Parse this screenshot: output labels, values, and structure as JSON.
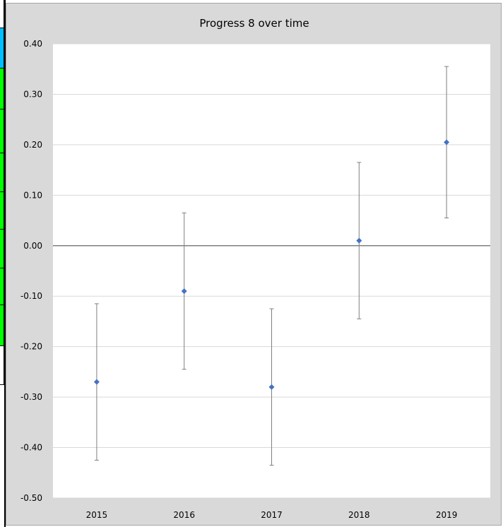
{
  "chart_data": {
    "type": "scatter",
    "title": "Progress 8 over time",
    "xlabel": "",
    "ylabel": "",
    "categories": [
      "2015",
      "2016",
      "2017",
      "2018",
      "2019"
    ],
    "series": [
      {
        "values": [
          -0.27,
          -0.09,
          -0.28,
          0.01,
          0.205
        ],
        "error_low": [
          -0.425,
          -0.245,
          -0.435,
          -0.145,
          0.055
        ],
        "error_high": [
          -0.115,
          0.065,
          -0.125,
          0.165,
          0.355
        ],
        "color": "#4472c4"
      }
    ],
    "ylim": [
      -0.5,
      0.4
    ],
    "yticks": [
      "-0.50",
      "-0.40",
      "-0.30",
      "-0.20",
      "-0.10",
      "0.00",
      "0.10",
      "0.20",
      "0.30",
      "0.40"
    ],
    "grid": true,
    "legend": "none"
  },
  "colors": {
    "plot_background": "#ffffff",
    "chart_background": "#d9d9d9",
    "gridline": "#d9d9d9",
    "zero_line": "#808080",
    "error_bar": "#7f7f7f",
    "marker": "#4472c4"
  },
  "edge_strip": [
    "#ffffff",
    "#00bfff",
    "#00ff00",
    "#00ff00",
    "#00ff00",
    "#00ff00",
    "#00ff00",
    "#00ff00",
    "#00ff00",
    "#ffffff"
  ]
}
